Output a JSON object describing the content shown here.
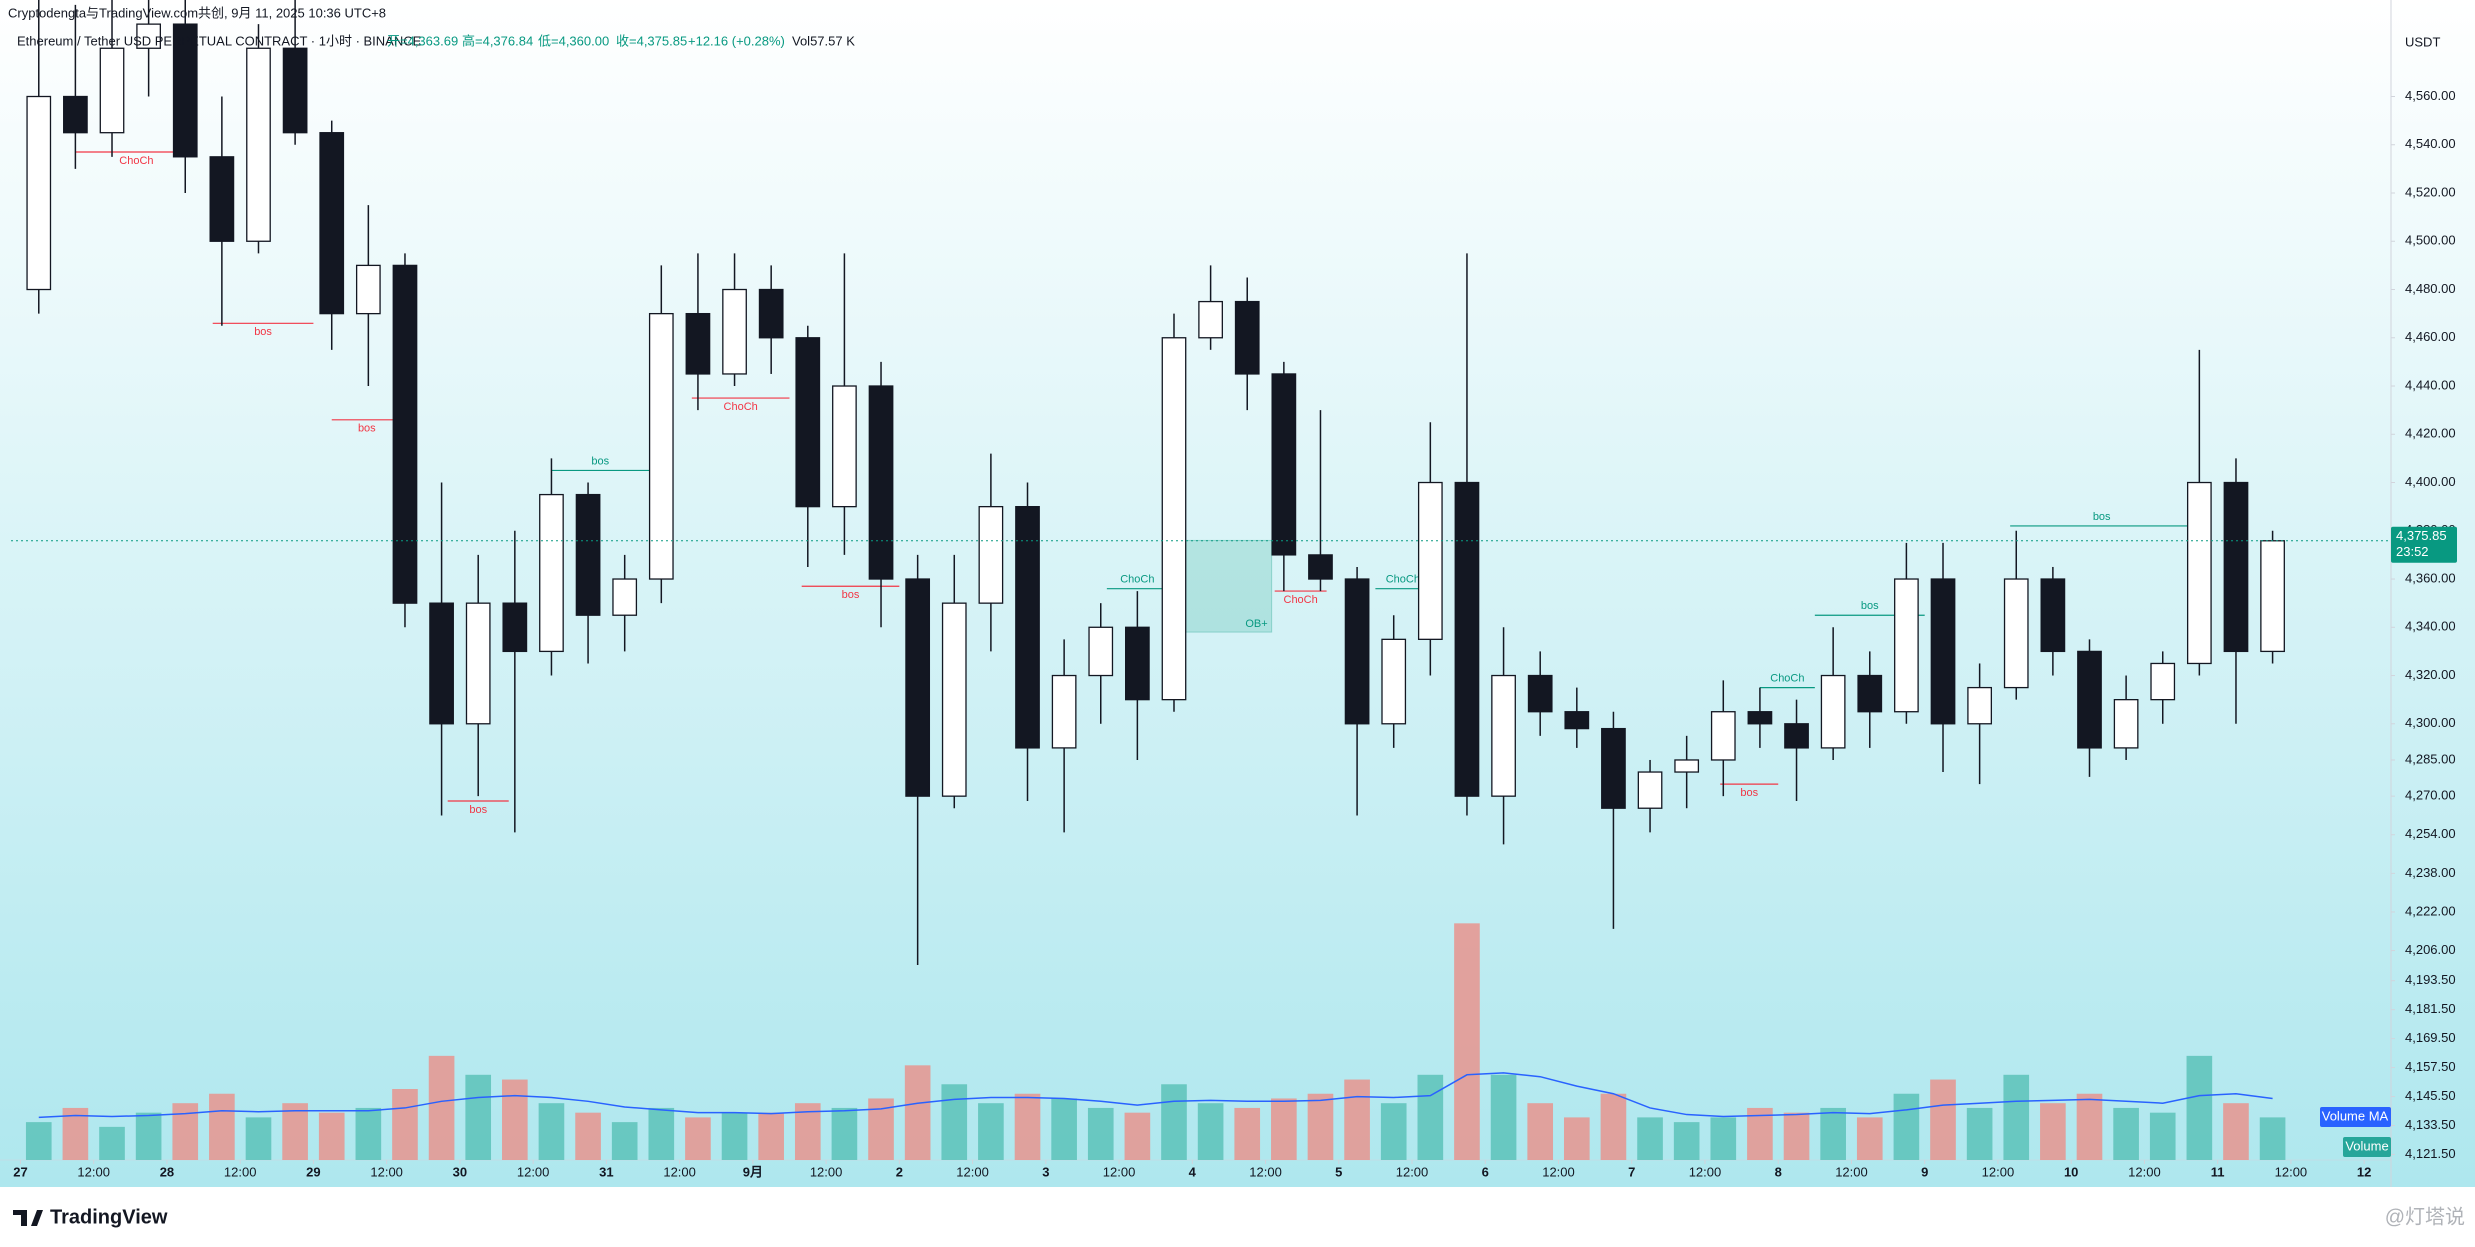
{
  "header": {
    "title": "Cryptodengta与TradingView.com共创, 9月 11, 2025 10:36 UTC+8",
    "symbol": "Ethereum / Tether USD PERPETUAL CONTRACT · 1小时 · BINANCE",
    "open": "开=4,363.69",
    "high": "高=4,376.84",
    "low": "低=4,360.00",
    "close": "收=4,375.85",
    "change": "+12.16 (+0.28%)",
    "volume": "Vol57.57 K"
  },
  "footer": {
    "logo": "TradingView",
    "watermark": "@灯塔说"
  },
  "chart_data": {
    "type": "candlestick",
    "x": [
      3,
      9,
      15,
      21,
      27,
      33,
      39,
      45,
      51,
      57,
      63,
      69,
      75,
      81,
      87,
      93,
      99,
      105,
      111,
      117,
      123,
      129,
      135,
      141,
      147,
      153,
      159,
      165,
      171,
      177,
      183,
      189,
      195,
      201,
      207,
      213,
      219,
      225,
      231,
      237,
      243,
      249,
      255,
      261,
      267,
      273,
      279,
      285,
      291,
      297,
      303,
      309,
      315,
      321,
      327,
      333,
      339,
      345,
      351,
      357,
      363,
      369
    ],
    "open": [
      4480,
      4560,
      4545,
      4580,
      4590,
      4535,
      4500,
      4580,
      4545,
      4470,
      4490,
      4350,
      4300,
      4350,
      4330,
      4395,
      4345,
      4360,
      4470,
      4445,
      4480,
      4460,
      4390,
      4440,
      4360,
      4270,
      4350,
      4390,
      4290,
      4320,
      4340,
      4310,
      4460,
      4475,
      4445,
      4370,
      4360,
      4300,
      4335,
      4400,
      4270,
      4320,
      4305,
      4298,
      4265,
      4280,
      4285,
      4305,
      4300,
      4290,
      4320,
      4305,
      4360,
      4300,
      4315,
      4360,
      4330,
      4290,
      4310,
      4325,
      4400,
      4330
    ],
    "high": [
      4600,
      4598,
      4600,
      4600,
      4600,
      4560,
      4590,
      4600,
      4550,
      4515,
      4495,
      4400,
      4370,
      4380,
      4410,
      4400,
      4370,
      4490,
      4495,
      4495,
      4490,
      4465,
      4495,
      4450,
      4370,
      4370,
      4412,
      4400,
      4335,
      4350,
      4355,
      4470,
      4490,
      4485,
      4450,
      4430,
      4365,
      4345,
      4425,
      4495,
      4340,
      4330,
      4315,
      4305,
      4285,
      4295,
      4318,
      4315,
      4310,
      4340,
      4330,
      4375,
      4375,
      4325,
      4380,
      4365,
      4335,
      4320,
      4330,
      4455,
      4410,
      4380
    ],
    "low": [
      4470,
      4530,
      4535,
      4560,
      4520,
      4465,
      4495,
      4540,
      4455,
      4440,
      4340,
      4262,
      4270,
      4255,
      4320,
      4325,
      4330,
      4350,
      4430,
      4440,
      4445,
      4365,
      4370,
      4340,
      4200,
      4265,
      4330,
      4268,
      4255,
      4300,
      4285,
      4305,
      4455,
      4430,
      4355,
      4355,
      4262,
      4290,
      4320,
      4262,
      4250,
      4295,
      4290,
      4215,
      4255,
      4265,
      4270,
      4290,
      4268,
      4285,
      4290,
      4300,
      4280,
      4275,
      4310,
      4320,
      4278,
      4285,
      4300,
      4320,
      4300,
      4325
    ],
    "close": [
      4560,
      4545,
      4580,
      4590,
      4535,
      4500,
      4580,
      4545,
      4470,
      4490,
      4350,
      4300,
      4350,
      4330,
      4395,
      4345,
      4360,
      4470,
      4445,
      4480,
      4460,
      4390,
      4440,
      4360,
      4270,
      4350,
      4390,
      4290,
      4320,
      4340,
      4310,
      4460,
      4475,
      4445,
      4370,
      4360,
      4300,
      4335,
      4400,
      4270,
      4320,
      4305,
      4298,
      4265,
      4280,
      4285,
      4305,
      4300,
      4290,
      4320,
      4305,
      4360,
      4300,
      4315,
      4360,
      4330,
      4290,
      4310,
      4325,
      4400,
      4330,
      4375.85
    ],
    "up_color": "#ffffff",
    "down_color": "#131722",
    "wick_color": "#131722",
    "volume": {
      "label": "Volume",
      "ma_label": "Volume MA",
      "vlim": [
        0,
        300
      ],
      "values": [
        40,
        55,
        35,
        50,
        60,
        70,
        45,
        60,
        50,
        55,
        75,
        110,
        90,
        85,
        60,
        50,
        40,
        55,
        45,
        50,
        50,
        60,
        55,
        65,
        100,
        80,
        60,
        70,
        65,
        55,
        50,
        80,
        60,
        55,
        65,
        70,
        85,
        60,
        90,
        250,
        90,
        60,
        45,
        70,
        45,
        40,
        45,
        55,
        50,
        55,
        45,
        70,
        85,
        55,
        90,
        60,
        70,
        55,
        50,
        110,
        60,
        45
      ],
      "ma": [
        45,
        47,
        46,
        47,
        49,
        52,
        51,
        52,
        52,
        52,
        55,
        62,
        66,
        68,
        66,
        62,
        56,
        53,
        50,
        50,
        49,
        51,
        52,
        54,
        60,
        64,
        66,
        66,
        65,
        62,
        58,
        62,
        63,
        62,
        62,
        63,
        67,
        66,
        68,
        90,
        92,
        88,
        78,
        70,
        55,
        48,
        46,
        47,
        48,
        50,
        49,
        53,
        58,
        60,
        62,
        63,
        64,
        62,
        60,
        68,
        70,
        65
      ],
      "up_color": "#5cc2b8",
      "down_color": "#e8948e",
      "ma_color": "#2962ff"
    },
    "y_unit": "USDT",
    "ylim": [
      4108,
      4600
    ],
    "yticks": [
      {
        "value": 4560,
        "label": "4,560.00"
      },
      {
        "value": 4540,
        "label": "4,540.00"
      },
      {
        "value": 4520,
        "label": "4,520.00"
      },
      {
        "value": 4500,
        "label": "4,500.00"
      },
      {
        "value": 4480,
        "label": "4,480.00"
      },
      {
        "value": 4460,
        "label": "4,460.00"
      },
      {
        "value": 4440,
        "label": "4,440.00"
      },
      {
        "value": 4420,
        "label": "4,420.00"
      },
      {
        "value": 4400,
        "label": "4,400.00"
      },
      {
        "value": 4380,
        "label": "4,380.00"
      },
      {
        "value": 4360,
        "label": "4,360.00"
      },
      {
        "value": 4340,
        "label": "4,340.00"
      },
      {
        "value": 4320,
        "label": "4,320.00"
      },
      {
        "value": 4300,
        "label": "4,300.00"
      },
      {
        "value": 4285,
        "label": "4,285.00"
      },
      {
        "value": 4270,
        "label": "4,270.00"
      },
      {
        "value": 4254,
        "label": "4,254.00"
      },
      {
        "value": 4238,
        "label": "4,238.00"
      },
      {
        "value": 4222,
        "label": "4,222.00"
      },
      {
        "value": 4206,
        "label": "4,206.00"
      },
      {
        "value": 4193.5,
        "label": "4,193.50"
      },
      {
        "value": 4181.5,
        "label": "4,181.50"
      },
      {
        "value": 4169.5,
        "label": "4,169.50"
      },
      {
        "value": 4157.5,
        "label": "4,157.50"
      },
      {
        "value": 4145.5,
        "label": "4,145.50"
      },
      {
        "value": 4133.5,
        "label": "4,133.50"
      },
      {
        "value": 4121.5,
        "label": "4,121.50"
      }
    ],
    "xlim": [
      -1.55,
      388.4
    ],
    "xticks": [
      {
        "value": 0,
        "label": "27"
      },
      {
        "value": 12,
        "label": "12:00"
      },
      {
        "value": 24,
        "label": "28"
      },
      {
        "value": 36,
        "label": "12:00"
      },
      {
        "value": 48,
        "label": "29"
      },
      {
        "value": 60,
        "label": "12:00"
      },
      {
        "value": 72,
        "label": "30"
      },
      {
        "value": 84,
        "label": "12:00"
      },
      {
        "value": 96,
        "label": "31"
      },
      {
        "value": 108,
        "label": "12:00"
      },
      {
        "value": 120,
        "label": "9月"
      },
      {
        "value": 132,
        "label": "12:00"
      },
      {
        "value": 144,
        "label": "2"
      },
      {
        "value": 156,
        "label": "12:00"
      },
      {
        "value": 168,
        "label": "3"
      },
      {
        "value": 180,
        "label": "12:00"
      },
      {
        "value": 192,
        "label": "4"
      },
      {
        "value": 204,
        "label": "12:00"
      },
      {
        "value": 216,
        "label": "5"
      },
      {
        "value": 228,
        "label": "12:00"
      },
      {
        "value": 240,
        "label": "6"
      },
      {
        "value": 252,
        "label": "12:00"
      },
      {
        "value": 264,
        "label": "7"
      },
      {
        "value": 276,
        "label": "12:00"
      },
      {
        "value": 288,
        "label": "8"
      },
      {
        "value": 300,
        "label": "12:00"
      },
      {
        "value": 312,
        "label": "9"
      },
      {
        "value": 324,
        "label": "12:00"
      },
      {
        "value": 336,
        "label": "10"
      },
      {
        "value": 348,
        "label": "12:00"
      },
      {
        "value": 360,
        "label": "11"
      },
      {
        "value": 372,
        "label": "12:00"
      },
      {
        "value": 384,
        "label": "12"
      }
    ],
    "last_price": {
      "value": 4375.85,
      "label": "4,375.85"
    },
    "countdown": "23:52",
    "last_color": "#089981",
    "annotations": [
      {
        "label": "ChoCh",
        "price": 4537,
        "x": [
          9,
          29
        ],
        "color": "#f23645"
      },
      {
        "label": "bos",
        "price": 4466,
        "x": [
          31.5,
          48
        ],
        "color": "#f23645"
      },
      {
        "label": "bos",
        "price": 4426,
        "x": [
          51,
          62.5
        ],
        "color": "#f23645"
      },
      {
        "label": "bos",
        "price": 4268,
        "x": [
          70,
          80
        ],
        "color": "#f23645"
      },
      {
        "label": "bos",
        "price": 4405,
        "x": [
          87,
          103
        ],
        "color": "#089981"
      },
      {
        "label": "ChoCh",
        "price": 4435,
        "x": [
          110,
          126
        ],
        "color": "#f23645"
      },
      {
        "label": "bos",
        "price": 4357,
        "x": [
          128,
          144
        ],
        "color": "#f23645"
      },
      {
        "label": "ChoCh",
        "price": 4356,
        "x": [
          178,
          188
        ],
        "color": "#089981"
      },
      {
        "label": "ChoCh",
        "price": 4355,
        "x": [
          205.5,
          214
        ],
        "color": "#f23645"
      },
      {
        "label": "ChoCh",
        "price": 4356,
        "x": [
          222,
          231
        ],
        "color": "#089981"
      },
      {
        "label": "bos",
        "price": 4275,
        "x": [
          278.5,
          288
        ],
        "color": "#f23645"
      },
      {
        "label": "ChoCh",
        "price": 4315,
        "x": [
          285,
          294
        ],
        "color": "#089981"
      },
      {
        "label": "bos",
        "price": 4345,
        "x": [
          294,
          312
        ],
        "color": "#089981"
      },
      {
        "label": "bos",
        "price": 4382,
        "x": [
          326,
          356
        ],
        "color": "#089981"
      }
    ],
    "zones": [
      {
        "label": "OB+",
        "x": [
          188.5,
          205
        ],
        "y": [
          4338,
          4376
        ],
        "color": "#089981"
      }
    ]
  }
}
